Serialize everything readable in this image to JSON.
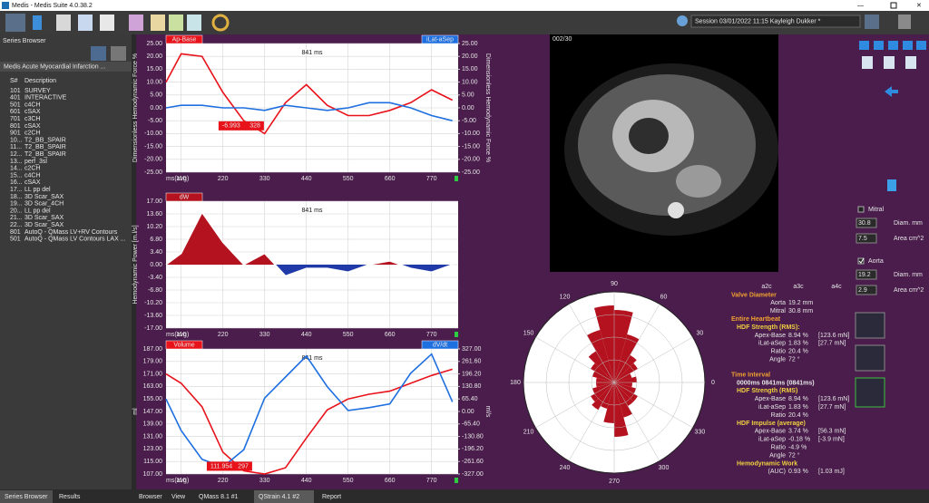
{
  "window": {
    "title": "Medis - Medis Suite 4.0.38.2"
  },
  "session": "Session 03/01/2022 11:15 Kayleigh Dukker *",
  "sidebar": {
    "title": "Series Browser",
    "study": "Medis Acute Myocardial Infarction ...",
    "columns": [
      "S#",
      "Description"
    ],
    "rows": [
      [
        "101",
        "SURVEY"
      ],
      [
        "401",
        "INTERACTIVE"
      ],
      [
        "501",
        "c4CH"
      ],
      [
        "601",
        "cSAX"
      ],
      [
        "701",
        "c3CH"
      ],
      [
        "801",
        "cSAX"
      ],
      [
        "901",
        "c2CH"
      ],
      [
        "10...",
        "T2_BB_SPAIR"
      ],
      [
        "11...",
        "T2_BB_SPAIR"
      ],
      [
        "12...",
        "T2_BB_SPAIR"
      ],
      [
        "13...",
        "perf_3sl"
      ],
      [
        "14...",
        "c2CH"
      ],
      [
        "15...",
        "c4CH"
      ],
      [
        "16...",
        "cSAX"
      ],
      [
        "17...",
        "LL pp del"
      ],
      [
        "18...",
        "3D Scar_SAX"
      ],
      [
        "19...",
        "3D Scar_4CH"
      ],
      [
        "20...",
        "LL pp del"
      ],
      [
        "21...",
        "3D Scar_SAX"
      ],
      [
        "22...",
        "3D Scar_SAX"
      ],
      [
        "801",
        "AutoQ - QMass LV+RV Contours"
      ],
      [
        "501",
        "AutoQ - QMass LV Contours LAX ..."
      ]
    ]
  },
  "sidebar_tabs": [
    "Series Browser",
    "Results"
  ],
  "main_tabs": [
    "Browser",
    "View",
    "QMass 8.1 #1",
    "QStrain 4.1 #2",
    "Report"
  ],
  "charts": [
    {
      "type": "line",
      "header": "841 ms",
      "xlabel": "ms(avg)",
      "ylabel": "Dimensionless Hemodynamic Force %",
      "y2label": "Dimensionless Hemodynamic Force %",
      "x": [
        70,
        110,
        165,
        220,
        275,
        330,
        385,
        440,
        495,
        550,
        605,
        660,
        715,
        770,
        825
      ],
      "xlim": [
        70,
        840
      ],
      "xticks": [
        110,
        220,
        330,
        440,
        550,
        660,
        770
      ],
      "ylim": [
        -25,
        25
      ],
      "yticks": [
        {
          "value": 25,
          "label": "25.00"
        },
        {
          "value": 20,
          "label": "20.00"
        },
        {
          "value": 15,
          "label": "15.00"
        },
        {
          "value": 10,
          "label": "10.00"
        },
        {
          "value": 5,
          "label": "5.00"
        },
        {
          "value": 0,
          "label": "0.00"
        },
        {
          "value": -5,
          "label": "-5.00"
        },
        {
          "value": -10,
          "label": "-10.00"
        },
        {
          "value": -15,
          "label": "-15.00"
        },
        {
          "value": -20,
          "label": "-20.00"
        },
        {
          "value": -25,
          "label": "-25.00"
        }
      ],
      "y2lim": [
        -25,
        25
      ],
      "y2ticks": [
        {
          "value": 25,
          "label": "25.00"
        },
        {
          "value": 20,
          "label": "20.00"
        },
        {
          "value": 15,
          "label": "15.00"
        },
        {
          "value": 10,
          "label": "10.00"
        },
        {
          "value": 5,
          "label": "5.00"
        },
        {
          "value": 0,
          "label": "0.00"
        },
        {
          "value": -5,
          "label": "-5.00"
        },
        {
          "value": -10,
          "label": "-10.00"
        },
        {
          "value": -15,
          "label": "-15.00"
        },
        {
          "value": -20,
          "label": "-20.00"
        },
        {
          "value": -25,
          "label": "-25.00"
        }
      ],
      "grid": true,
      "series": [
        {
          "name": "Ap-Base",
          "color": "#e8121b",
          "values": [
            10,
            21,
            20,
            6,
            -5,
            -10,
            2,
            9,
            1,
            -3,
            -3,
            -1,
            2,
            7,
            3
          ]
        },
        {
          "name": "iLat-aSep",
          "color": "#1e6fe0",
          "axis": "y2",
          "values": [
            0,
            1,
            1,
            0,
            0,
            -1,
            1,
            0,
            -1,
            0,
            2,
            2,
            0,
            -3,
            -5
          ]
        }
      ],
      "annotations": [
        {
          "x": 328,
          "value": -6.993
        }
      ]
    },
    {
      "type": "area",
      "header": "841 ms",
      "xlabel": "ms(avg)",
      "ylabel": "Hemodynamic Power [m.l/s]",
      "x": [
        70,
        110,
        165,
        220,
        275,
        330,
        385,
        440,
        495,
        550,
        605,
        660,
        715,
        770,
        825
      ],
      "xlim": [
        70,
        840
      ],
      "xticks": [
        110,
        220,
        330,
        440,
        550,
        660,
        770
      ],
      "ylim": [
        -17,
        17
      ],
      "yticks": [
        {
          "value": 17,
          "label": "17.00"
        },
        {
          "value": 13.6,
          "label": "13.60"
        },
        {
          "value": 10.2,
          "label": "10.20"
        },
        {
          "value": 6.8,
          "label": "6.80"
        },
        {
          "value": 3.4,
          "label": "3.40"
        },
        {
          "value": 0,
          "label": "0.00"
        },
        {
          "value": -3.4,
          "label": "-3.40"
        },
        {
          "value": -6.8,
          "label": "-6.80"
        },
        {
          "value": -10.2,
          "label": "-10.20"
        },
        {
          "value": -13.6,
          "label": "-13.60"
        },
        {
          "value": -17,
          "label": "-17.00"
        }
      ],
      "grid": true,
      "series": [
        {
          "name": "dW",
          "color": "#b3121e",
          "below_color": "#1f3aa8",
          "line_color": "#ffffff",
          "values": [
            0,
            3,
            14,
            6,
            0,
            3,
            -3,
            -1,
            -1,
            -2,
            0,
            1,
            -1,
            -2,
            0
          ]
        }
      ],
      "annotations": []
    },
    {
      "type": "line",
      "header": "841 ms",
      "xlabel": "ms(avg)",
      "ylabel": "ml",
      "y2label": "ml/s",
      "x": [
        70,
        110,
        165,
        220,
        275,
        330,
        385,
        440,
        495,
        550,
        605,
        660,
        715,
        770,
        825
      ],
      "xlim": [
        70,
        840
      ],
      "xticks": [
        110,
        220,
        330,
        440,
        550,
        660,
        770
      ],
      "ylim": [
        107,
        187
      ],
      "yticks": [
        {
          "value": 187,
          "label": "187.00"
        },
        {
          "value": 179,
          "label": "179.00"
        },
        {
          "value": 171,
          "label": "171.00"
        },
        {
          "value": 163,
          "label": "163.00"
        },
        {
          "value": 155,
          "label": "155.00"
        },
        {
          "value": 147,
          "label": "147.00"
        },
        {
          "value": 139,
          "label": "139.00"
        },
        {
          "value": 131,
          "label": "131.00"
        },
        {
          "value": 123,
          "label": "123.00"
        },
        {
          "value": 115,
          "label": "115.00"
        },
        {
          "value": 107,
          "label": "107.00"
        }
      ],
      "y2lim": [
        -327,
        327
      ],
      "y2ticks": [
        {
          "value": 327,
          "label": "327.00"
        },
        {
          "value": 261.6,
          "label": "261.60"
        },
        {
          "value": 196.2,
          "label": "196.20"
        },
        {
          "value": 130.8,
          "label": "130.80"
        },
        {
          "value": 65.4,
          "label": "65.40"
        },
        {
          "value": 0,
          "label": "0.00"
        },
        {
          "value": -65.4,
          "label": "-65.40"
        },
        {
          "value": -130.8,
          "label": "-130.80"
        },
        {
          "value": -196.2,
          "label": "-196.20"
        },
        {
          "value": -261.6,
          "label": "-261.60"
        },
        {
          "value": -327,
          "label": "-327.00"
        }
      ],
      "grid": true,
      "series": [
        {
          "name": "Volume",
          "color": "#e8121b",
          "values": [
            171,
            165,
            150,
            121,
            109,
            107,
            111,
            130,
            148,
            155,
            158,
            160,
            165,
            170,
            174
          ]
        },
        {
          "name": "dV/dt",
          "color": "#1e6fe0",
          "axis": "y2",
          "values": [
            65,
            -100,
            -250,
            -290,
            -200,
            70,
            180,
            290,
            130,
            5,
            20,
            40,
            200,
            300,
            50
          ]
        }
      ],
      "annotations": [
        {
          "x": 297,
          "value": 111.954
        }
      ]
    }
  ],
  "image": {
    "frame": "002/30"
  },
  "polar": {
    "type": "rose",
    "color": "#b3121e",
    "angle_ticks": [
      0,
      30,
      60,
      90,
      120,
      150,
      180,
      210,
      240,
      270,
      300,
      330
    ],
    "rlim": [
      0,
      1
    ],
    "rticks": [
      0.25,
      0.5,
      0.75,
      1
    ],
    "values": [
      0.25,
      0.2,
      0.3,
      0.35,
      0.55,
      0.8,
      0.85,
      0.6,
      0.4,
      0.3,
      0.25,
      0.2,
      0.2,
      0.25,
      0.3,
      0.35,
      0.3,
      0.45,
      0.6,
      0.4,
      0.3,
      0.3,
      0.25,
      0.2
    ]
  },
  "results": {
    "columns": [
      "a2c",
      "a3c",
      "a4c"
    ],
    "sections": [
      {
        "title": "Valve Diameter",
        "rows": [
          {
            "label": "Aorta",
            "value": "19.2 mm"
          },
          {
            "label": "Mitral",
            "value": "30.8 mm"
          }
        ],
        "groups": []
      },
      {
        "title": "Entire Heartbeat",
        "rows": [],
        "groups": [
          {
            "title": "HDF Strength (RMS):",
            "rows": [
              {
                "label": "Apex-Base",
                "value": "8.94 %",
                "extra": "[123.6 mN]"
              },
              {
                "label": "iLat-aSep",
                "value": "1.83 %",
                "extra": "[27.7 mN]"
              },
              {
                "label": "Ratio",
                "value": "20.4 %"
              },
              {
                "label": "Angle",
                "value": "72 °"
              }
            ]
          }
        ]
      },
      {
        "title": "Time Interval",
        "rows": [
          {
            "label": "0000ms 0841ms (0841ms)"
          }
        ],
        "groups": [
          {
            "title": "HDF Strength (RMS)",
            "rows": [
              {
                "label": "Apex-Base",
                "value": "8.94 %",
                "extra": "[123.6 mN]"
              },
              {
                "label": "iLat-aSep",
                "value": "1.83 %",
                "extra": "[27.7 mN]"
              },
              {
                "label": "Ratio",
                "value": "20.4 %"
              }
            ]
          },
          {
            "title": "HDF Impulse (average)",
            "rows": [
              {
                "label": "Apex-Base",
                "value": "3.74 %",
                "extra": "[56.3 mN]"
              },
              {
                "label": "iLat-aSep",
                "value": "-0.18 %",
                "extra": "[-3.9 mN]"
              },
              {
                "label": "Ratio",
                "value": "-4.9 %"
              },
              {
                "label": "Angle",
                "value": "72 °"
              }
            ]
          },
          {
            "title": "Hemodynamic Work",
            "rows": [
              {
                "label": "(AUC)",
                "value": "0.93 %",
                "extra": "[1.03 mJ]"
              }
            ]
          }
        ]
      }
    ]
  },
  "valves": [
    {
      "name": "Mitral",
      "checked": false,
      "diameter": "30.8",
      "area": "7.5"
    },
    {
      "name": "Aorta",
      "checked": true,
      "diameter": "19.2",
      "area": "2.9"
    }
  ],
  "valve_units": {
    "diameter": "Diam. mm",
    "area": "Area cm^2"
  }
}
